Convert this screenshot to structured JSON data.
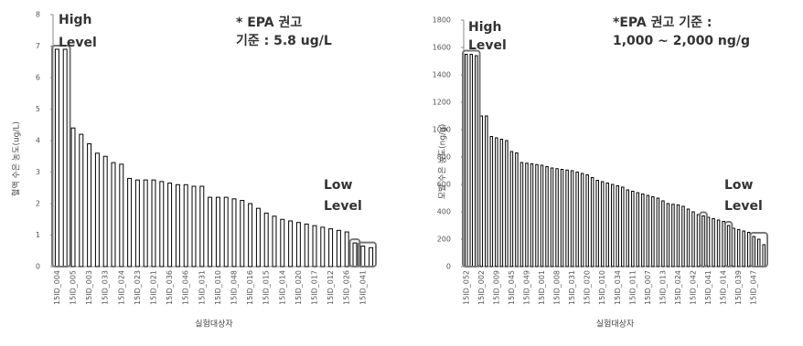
{
  "chart_data": [
    {
      "type": "bar",
      "y_label": "혈액 수은 농도(ug/L)",
      "x_label": "실험대상자",
      "annotations": [
        "High",
        "Level",
        "Low",
        "Level",
        "* EPA 권고",
        "기준 : 5.8 ug/L"
      ],
      "categories": [
        "15ID_004",
        null,
        "15ID_005",
        null,
        "15ID_003",
        null,
        "15ID_033",
        null,
        "15ID_024",
        null,
        "15ID_023",
        null,
        "15ID_021",
        null,
        "15ID_036",
        null,
        "15ID_046",
        null,
        "15ID_031",
        null,
        "15ID_010",
        null,
        "15ID_048",
        null,
        "15ID_016",
        null,
        "15ID_015",
        null,
        "15ID_014",
        null,
        "15ID_020",
        null,
        "15ID_017",
        null,
        "15ID_012",
        null,
        "15ID_026",
        null,
        "15ID_041",
        null
      ],
      "values": [
        6.9,
        6.9,
        4.4,
        4.2,
        3.9,
        3.6,
        3.5,
        3.3,
        3.25,
        2.8,
        2.75,
        2.75,
        2.75,
        2.7,
        2.65,
        2.6,
        2.6,
        2.55,
        2.55,
        2.2,
        2.2,
        2.2,
        2.15,
        2.1,
        2.0,
        1.85,
        1.7,
        1.6,
        1.5,
        1.45,
        1.4,
        1.35,
        1.3,
        1.25,
        1.2,
        1.15,
        1.1,
        0.75,
        0.65,
        0.6
      ],
      "color": "#ffffff",
      "edgecolor": "#000000",
      "ylim": [
        0,
        8
      ],
      "yticks": [
        0,
        1,
        2,
        3,
        4,
        5,
        6,
        7,
        8
      ]
    },
    {
      "type": "bar",
      "y_label": "모발 수은 농도(ng/g)",
      "x_label": "실험대상자",
      "annotations": [
        "High",
        "Level",
        "Low",
        "Level",
        "*EPA 권고 기준 :",
        "1,000 ~ 2,000 ng/g"
      ],
      "categories": [
        "15ID_052",
        null,
        null,
        "15ID_002",
        null,
        null,
        "15ID_009",
        null,
        null,
        "15ID_045",
        null,
        null,
        "15ID_049",
        null,
        null,
        "15ID_001",
        null,
        null,
        "15ID_008",
        null,
        null,
        "15ID_031",
        null,
        null,
        "15ID_020",
        null,
        null,
        "15ID_010",
        null,
        null,
        "15ID_034",
        null,
        null,
        "15ID_011",
        null,
        null,
        "15ID_007",
        null,
        null,
        "15ID_013",
        null,
        null,
        "15ID_024",
        null,
        null,
        "15ID_042",
        null,
        null,
        "15ID_041",
        null,
        null,
        "15ID_014",
        null,
        null,
        "15ID_039",
        null,
        null,
        "15ID_047",
        null,
        null
      ],
      "values": [
        1550,
        1550,
        1540,
        1100,
        1100,
        950,
        940,
        930,
        920,
        840,
        830,
        760,
        755,
        750,
        745,
        740,
        730,
        720,
        715,
        710,
        705,
        700,
        690,
        680,
        670,
        650,
        630,
        620,
        610,
        600,
        590,
        580,
        560,
        550,
        540,
        530,
        520,
        510,
        500,
        480,
        460,
        455,
        450,
        440,
        420,
        400,
        380,
        370,
        360,
        350,
        340,
        330,
        300,
        280,
        270,
        260,
        250,
        220,
        200,
        160
      ],
      "color": "#ffffff",
      "edgecolor": "#000000",
      "ylim": [
        0,
        1800
      ],
      "yticks": [
        0,
        200,
        400,
        600,
        800,
        1000,
        1200,
        1400,
        1600,
        1800
      ]
    }
  ]
}
